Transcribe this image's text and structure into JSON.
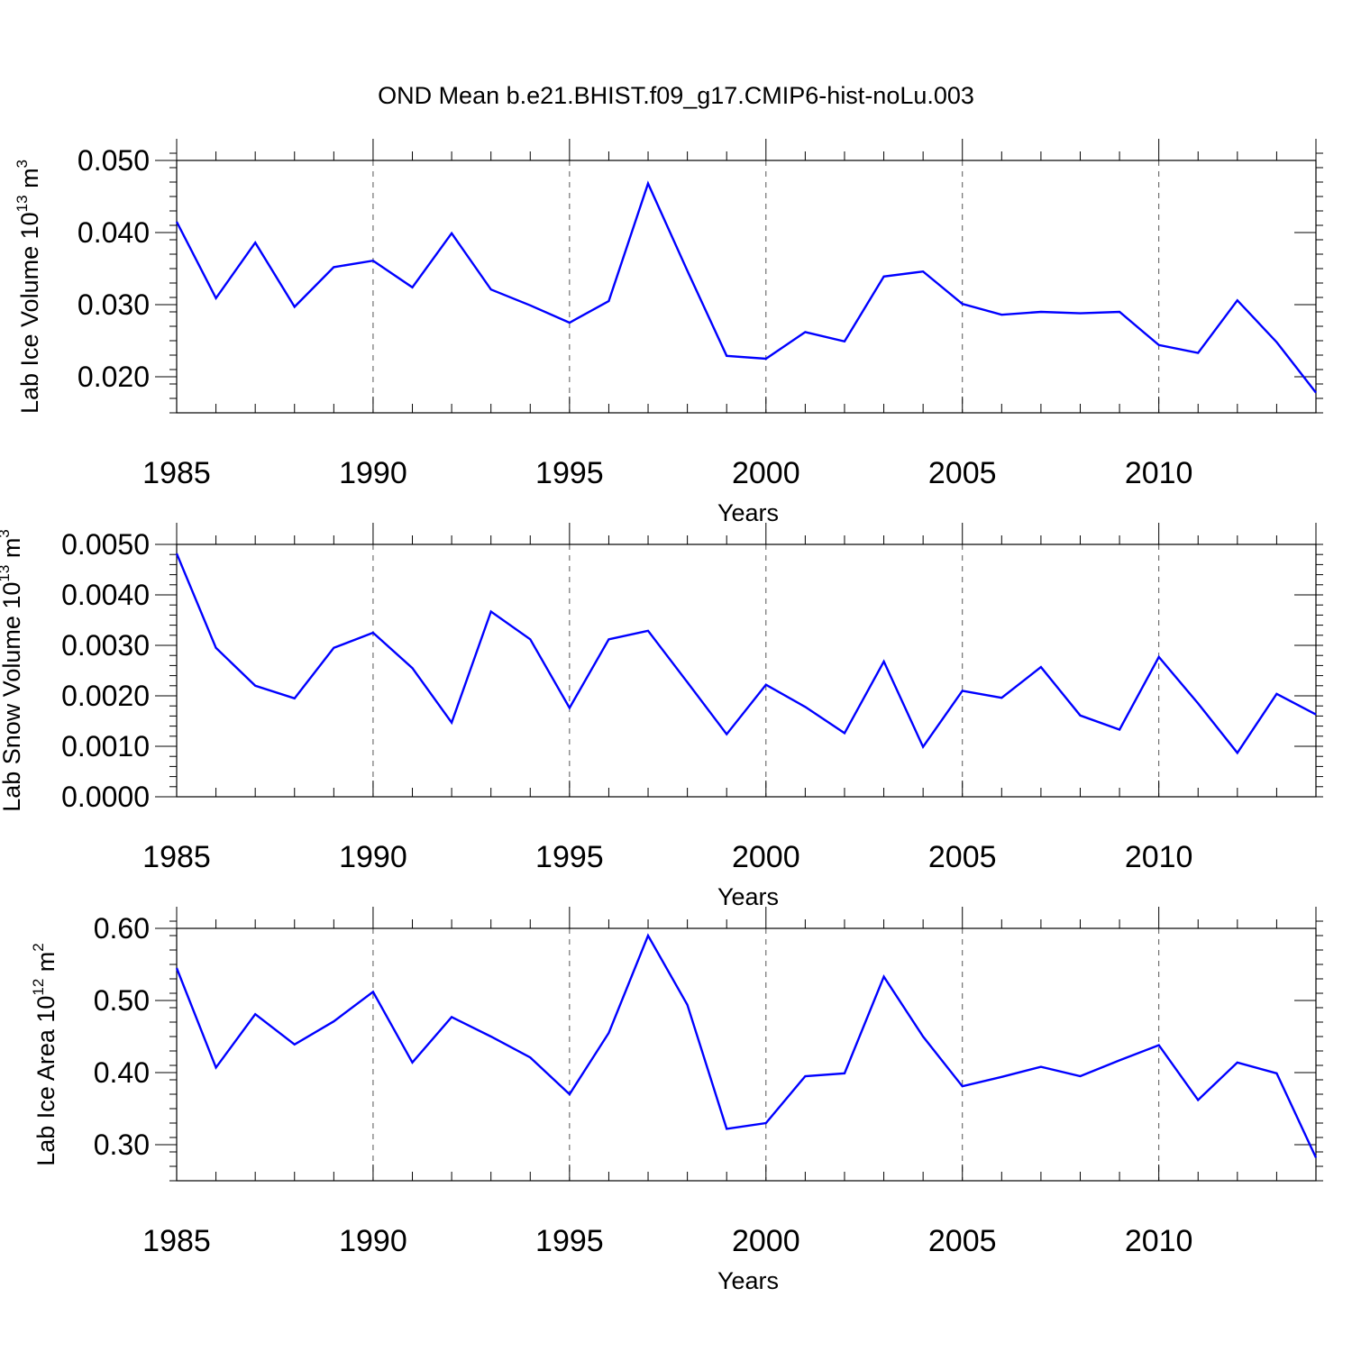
{
  "title": "OND Mean b.e21.BHIST.f09_g17.CMIP6-hist-noLu.003",
  "chart_data": [
    {
      "type": "line",
      "ylabel": {
        "base": "Lab Ice Volume 10",
        "exp": "13",
        "unit": " m",
        "unit_exp": "3"
      },
      "xlabel": "Years",
      "xlim": [
        1985,
        2014
      ],
      "ylim": [
        0.015,
        0.05
      ],
      "x_ticks": [
        1985,
        1990,
        1995,
        2000,
        2005,
        2010
      ],
      "x_tick_labels": [
        "1985",
        "1990",
        "1995",
        "2000",
        "2005",
        "2010"
      ],
      "y_ticks": [
        0.02,
        0.03,
        0.04,
        0.05
      ],
      "y_tick_labels": [
        "0.020",
        "0.030",
        "0.040",
        "0.050"
      ],
      "y_minor_step": 0.002,
      "grid": "x-dashed",
      "line_color": "#0000ff",
      "x": [
        1985,
        1986,
        1987,
        1988,
        1989,
        1990,
        1991,
        1992,
        1993,
        1994,
        1995,
        1996,
        1997,
        1998,
        1999,
        2000,
        2001,
        2002,
        2003,
        2004,
        2005,
        2006,
        2007,
        2008,
        2009,
        2010,
        2011,
        2012,
        2013,
        2014
      ],
      "values": [
        0.0415,
        0.0309,
        0.0386,
        0.0297,
        0.0352,
        0.0361,
        0.0324,
        0.0399,
        0.0321,
        0.0299,
        0.0275,
        0.0305,
        0.0468,
        0.0347,
        0.0229,
        0.0225,
        0.0262,
        0.0249,
        0.0339,
        0.0346,
        0.0301,
        0.0286,
        0.029,
        0.0288,
        0.029,
        0.0244,
        0.0233,
        0.0306,
        0.0248,
        0.0178
      ]
    },
    {
      "type": "line",
      "ylabel": {
        "base": "Lab Snow Volume 10",
        "exp": "13",
        "unit": " m",
        "unit_exp": "3"
      },
      "xlabel": "Years",
      "xlim": [
        1985,
        2014
      ],
      "ylim": [
        0.0,
        0.005
      ],
      "x_ticks": [
        1985,
        1990,
        1995,
        2000,
        2005,
        2010
      ],
      "x_tick_labels": [
        "1985",
        "1990",
        "1995",
        "2000",
        "2005",
        "2010"
      ],
      "y_ticks": [
        0.0,
        0.001,
        0.002,
        0.003,
        0.004,
        0.005
      ],
      "y_tick_labels": [
        "0.0000",
        "0.0010",
        "0.0020",
        "0.0030",
        "0.0040",
        "0.0050"
      ],
      "y_minor_step": 0.0002,
      "grid": "x-dashed",
      "line_color": "#0000ff",
      "x": [
        1985,
        1986,
        1987,
        1988,
        1989,
        1990,
        1991,
        1992,
        1993,
        1994,
        1995,
        1996,
        1997,
        1998,
        1999,
        2000,
        2001,
        2002,
        2003,
        2004,
        2005,
        2006,
        2007,
        2008,
        2009,
        2010,
        2011,
        2012,
        2013,
        2014
      ],
      "values": [
        0.00482,
        0.00295,
        0.0022,
        0.00195,
        0.00295,
        0.00325,
        0.00255,
        0.00147,
        0.00367,
        0.00312,
        0.00176,
        0.00312,
        0.00329,
        0.00227,
        0.00124,
        0.00222,
        0.00178,
        0.00126,
        0.00268,
        0.00099,
        0.0021,
        0.00196,
        0.00257,
        0.00161,
        0.00133,
        0.00277,
        0.00185,
        0.00087,
        0.00204,
        0.00163
      ]
    },
    {
      "type": "line",
      "ylabel": {
        "base": "Lab Ice Area 10",
        "exp": "12",
        "unit": " m",
        "unit_exp": "2"
      },
      "xlabel": "Years",
      "xlim": [
        1985,
        2014
      ],
      "ylim": [
        0.25,
        0.6
      ],
      "x_ticks": [
        1985,
        1990,
        1995,
        2000,
        2005,
        2010
      ],
      "x_tick_labels": [
        "1985",
        "1990",
        "1995",
        "2000",
        "2005",
        "2010"
      ],
      "y_ticks": [
        0.3,
        0.4,
        0.5,
        0.6
      ],
      "y_tick_labels": [
        "0.30",
        "0.40",
        "0.50",
        "0.60"
      ],
      "y_minor_step": 0.02,
      "grid": "x-dashed",
      "line_color": "#0000ff",
      "x": [
        1985,
        1986,
        1987,
        1988,
        1989,
        1990,
        1991,
        1992,
        1993,
        1994,
        1995,
        1996,
        1997,
        1998,
        1999,
        2000,
        2001,
        2002,
        2003,
        2004,
        2005,
        2006,
        2007,
        2008,
        2009,
        2010,
        2011,
        2012,
        2013,
        2014
      ],
      "values": [
        0.545,
        0.407,
        0.481,
        0.439,
        0.471,
        0.512,
        0.414,
        0.477,
        0.45,
        0.421,
        0.37,
        0.455,
        0.59,
        0.494,
        0.322,
        0.33,
        0.395,
        0.399,
        0.533,
        0.45,
        0.381,
        0.394,
        0.408,
        0.395,
        0.417,
        0.438,
        0.362,
        0.414,
        0.399,
        0.282
      ]
    }
  ]
}
